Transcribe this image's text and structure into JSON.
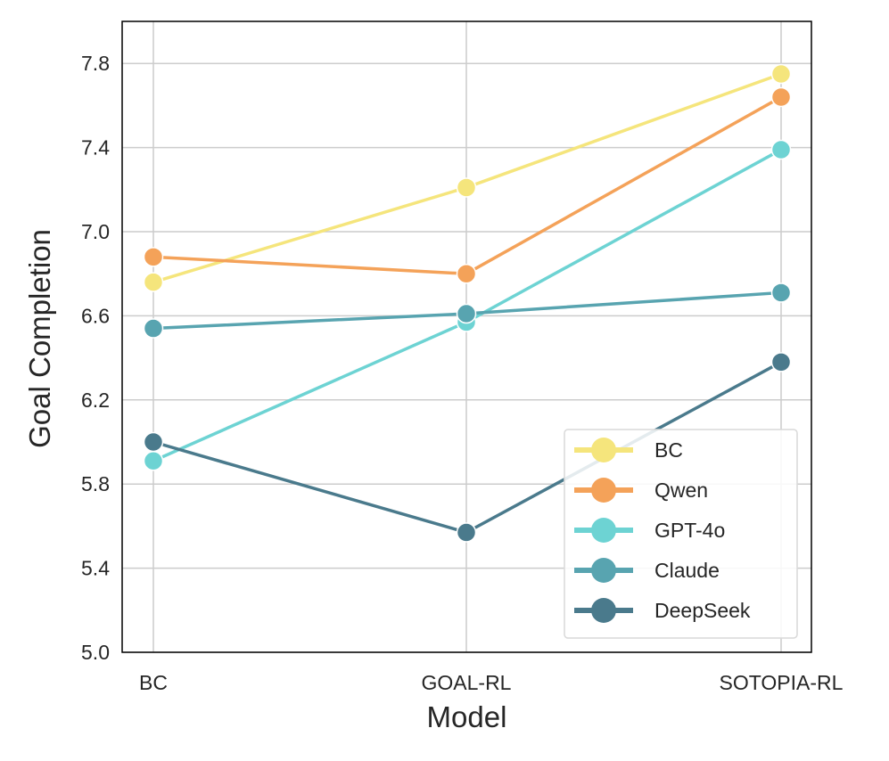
{
  "chart_data": {
    "type": "line",
    "title": "",
    "xlabel": "Model",
    "ylabel": "Goal Completion",
    "categories": [
      "BC",
      "GOAL-RL",
      "SOTOPIA-RL"
    ],
    "ylim": [
      5.0,
      8.0
    ],
    "yticks": [
      5.0,
      5.4,
      5.8,
      6.2,
      6.6,
      7.0,
      7.4,
      7.8
    ],
    "ytick_labels": [
      "5.0",
      "5.4",
      "5.8",
      "6.2",
      "6.6",
      "7.0",
      "7.4",
      "7.8"
    ],
    "grid": true,
    "legend_position": "bottom-right",
    "series": [
      {
        "name": "BC",
        "color": "#f5e57c",
        "values": [
          6.76,
          7.21,
          7.75
        ]
      },
      {
        "name": "Qwen",
        "color": "#f4a259",
        "values": [
          6.88,
          6.8,
          7.64
        ]
      },
      {
        "name": "GPT-4o",
        "color": "#6dd3d3",
        "values": [
          5.91,
          6.57,
          7.39
        ]
      },
      {
        "name": "Claude",
        "color": "#58a4b0",
        "values": [
          6.54,
          6.61,
          6.71
        ]
      },
      {
        "name": "DeepSeek",
        "color": "#4a7a8c",
        "values": [
          6.0,
          5.57,
          6.38
        ]
      }
    ]
  }
}
